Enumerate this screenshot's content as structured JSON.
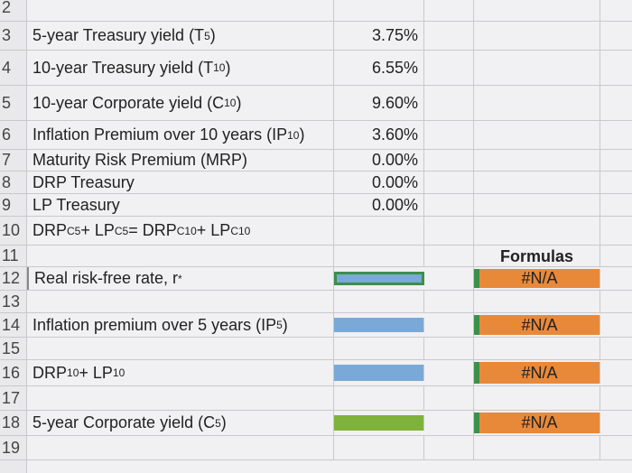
{
  "sheet": {
    "rows": [
      {
        "number": "2"
      },
      {
        "number": "3",
        "label": [
          {
            "text": "5-year Treasury yield (T"
          },
          {
            "sub": "5"
          },
          {
            "text": ")"
          }
        ],
        "value": "3.75%"
      },
      {
        "number": "4",
        "label": [
          {
            "text": "10-year Treasury yield (T"
          },
          {
            "sub": "10"
          },
          {
            "text": ")"
          }
        ],
        "value": "6.55%"
      },
      {
        "number": "5",
        "label": [
          {
            "text": "10-year Corporate yield (C"
          },
          {
            "sub": "10"
          },
          {
            "text": ")"
          }
        ],
        "value": "9.60%"
      },
      {
        "number": "6",
        "label": [
          {
            "text": "Inflation Premium over 10 years (IP"
          },
          {
            "sub": "10"
          },
          {
            "text": ")"
          }
        ],
        "value": "3.60%"
      },
      {
        "number": "7",
        "label": [
          {
            "text": "Maturity Risk Premium (MRP)"
          }
        ],
        "value": "0.00%"
      },
      {
        "number": "8",
        "label": [
          {
            "text": "DRP Treasury"
          }
        ],
        "value": "0.00%"
      },
      {
        "number": "9",
        "label": [
          {
            "text": "LP Treasury"
          }
        ],
        "value": "0.00%"
      },
      {
        "number": "10",
        "label": [
          {
            "text": "DRP"
          },
          {
            "sub": "C5"
          },
          {
            "text": " + LP"
          },
          {
            "sub": "C5"
          },
          {
            "text": " = DRP"
          },
          {
            "sub": "C10"
          },
          {
            "text": " + LP"
          },
          {
            "sub": "C10"
          }
        ]
      },
      {
        "number": "11",
        "formula_header": "Formulas"
      },
      {
        "number": "12",
        "label": [
          {
            "text": "Real risk-free rate, r"
          },
          {
            "sup": "*"
          }
        ],
        "value_fill": "#7aa9d8",
        "selected": true,
        "formula": "#N/A"
      },
      {
        "number": "13"
      },
      {
        "number": "14",
        "label": [
          {
            "text": "Inflation premium over 5 years (IP"
          },
          {
            "sub": "5"
          },
          {
            "text": ")"
          }
        ],
        "value_fill": "#7aa9d8",
        "formula": "#N/A"
      },
      {
        "number": "15"
      },
      {
        "number": "16",
        "label": [
          {
            "text": "DRP"
          },
          {
            "sub": "10"
          },
          {
            "text": " + LP"
          },
          {
            "sub": "10"
          }
        ],
        "value_fill": "#7aa9d8",
        "formula": "#N/A"
      },
      {
        "number": "17"
      },
      {
        "number": "18",
        "label": [
          {
            "text": "5-year Corporate yield (C"
          },
          {
            "sub": "5"
          },
          {
            "text": ")"
          }
        ],
        "value_fill": "#7fb23a",
        "formula": "#N/A"
      },
      {
        "number": "19"
      }
    ],
    "formula_fill": "#e8893a"
  }
}
